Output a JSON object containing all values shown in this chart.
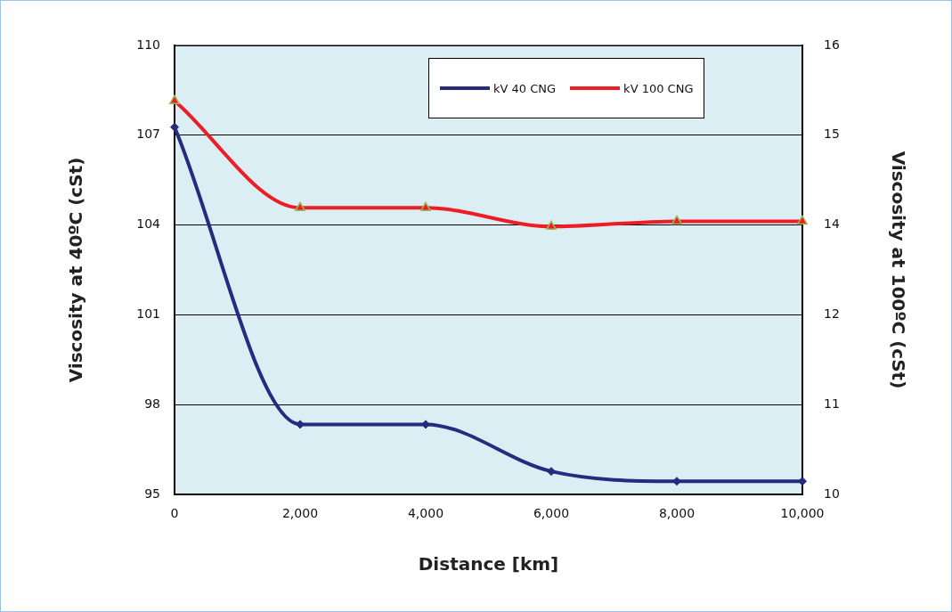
{
  "chart_data": {
    "type": "line",
    "xlabel": "Distance [km]",
    "ylabel": "Viscosity at 40ºC (cSt)",
    "y2label": "Viscosity at 100ºC (cSt)",
    "x": [
      0,
      2000,
      4000,
      6000,
      8000,
      10000
    ],
    "xlim": [
      0,
      10000
    ],
    "xticks": [
      {
        "value": 0,
        "label": "0"
      },
      {
        "value": 2000,
        "label": "2,000"
      },
      {
        "value": 4000,
        "label": "4,000"
      },
      {
        "value": 6000,
        "label": "6,000"
      },
      {
        "value": 8000,
        "label": "8,000"
      },
      {
        "value": 10000,
        "label": "10,000"
      }
    ],
    "ylim": [
      95,
      110
    ],
    "yticks": [
      95,
      98,
      101,
      104,
      107,
      110
    ],
    "y2lim": [
      10,
      16
    ],
    "y2ticks": [
      10,
      {
        "value": 11.2,
        "label": "11"
      },
      {
        "value": 12.4,
        "label": "12"
      },
      {
        "value": 13.6,
        "label": "14"
      },
      {
        "value": 14.8,
        "label": "15"
      },
      16
    ],
    "series": [
      {
        "name": "kV 40 CNG",
        "color": "#262b7e",
        "marker": "diamond",
        "values": [
          107.27,
          97.34,
          97.34,
          95.77,
          95.44,
          95.44
        ]
      },
      {
        "name": "kV 100 CNG",
        "color": "#ee1c25",
        "marker": "triangle",
        "axis": "y2",
        "values": [
          15.26,
          13.83,
          13.83,
          13.58,
          13.65,
          13.65
        ]
      }
    ],
    "grid": "y",
    "legend": "top right"
  }
}
